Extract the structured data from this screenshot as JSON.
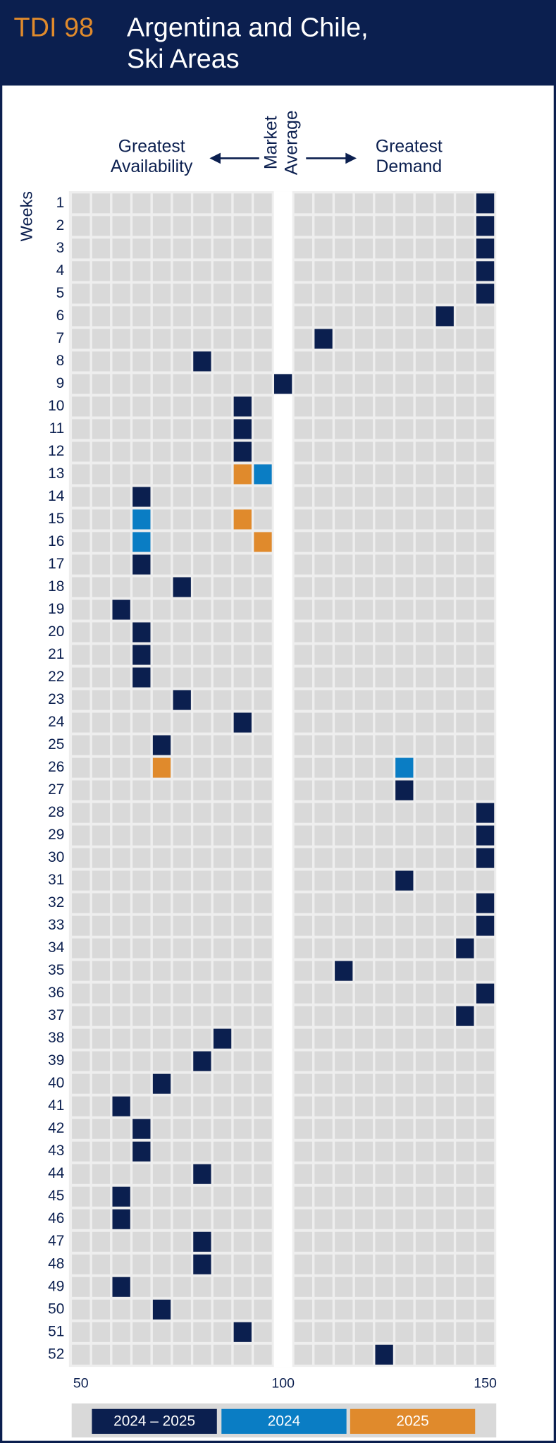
{
  "chart_data": {
    "type": "grid",
    "label": "TDI 98",
    "title_lines": [
      "Argentina and Chile,",
      "Ski Areas"
    ],
    "left_label": [
      "Greatest",
      "Availability"
    ],
    "center_label": [
      "Market",
      "Average"
    ],
    "right_label": [
      "Greatest",
      "Demand"
    ],
    "ylabel": "Weeks",
    "categories": [
      "1",
      "2",
      "3",
      "4",
      "5",
      "6",
      "7",
      "8",
      "9",
      "10",
      "11",
      "12",
      "13",
      "14",
      "15",
      "16",
      "17",
      "18",
      "19",
      "20",
      "21",
      "22",
      "23",
      "24",
      "25",
      "26",
      "27",
      "28",
      "29",
      "30",
      "31",
      "32",
      "33",
      "34",
      "35",
      "36",
      "37",
      "38",
      "39",
      "40",
      "41",
      "42",
      "43",
      "44",
      "45",
      "46",
      "47",
      "48",
      "49",
      "50",
      "51",
      "52"
    ],
    "xlim": [
      50,
      150
    ],
    "xticks": [
      50,
      100,
      150
    ],
    "series": [
      {
        "name": "2024 – 2025",
        "color": "#0b1f4f",
        "values": [
          150,
          150,
          150,
          150,
          150,
          140,
          110,
          80,
          100,
          90,
          90,
          90,
          null,
          65,
          null,
          null,
          65,
          75,
          60,
          65,
          65,
          65,
          75,
          90,
          70,
          null,
          130,
          150,
          150,
          150,
          130,
          150,
          150,
          145,
          115,
          150,
          145,
          85,
          80,
          70,
          60,
          65,
          65,
          80,
          60,
          60,
          80,
          80,
          60,
          70,
          90,
          125
        ]
      },
      {
        "name": "2024",
        "color": "#0a7dc4",
        "values": [
          null,
          null,
          null,
          null,
          null,
          null,
          null,
          null,
          null,
          null,
          null,
          null,
          95,
          null,
          65,
          65,
          null,
          null,
          null,
          null,
          null,
          null,
          null,
          null,
          null,
          130,
          null,
          null,
          null,
          null,
          null,
          null,
          null,
          null,
          null,
          null,
          null,
          null,
          null,
          null,
          null,
          null,
          null,
          null,
          null,
          null,
          null,
          null,
          null,
          null,
          null,
          null
        ]
      },
      {
        "name": "2025",
        "color": "#e08a2c",
        "values": [
          null,
          null,
          null,
          null,
          null,
          null,
          null,
          null,
          null,
          null,
          null,
          null,
          90,
          null,
          90,
          95,
          null,
          null,
          null,
          null,
          null,
          null,
          null,
          null,
          null,
          70,
          null,
          null,
          null,
          null,
          null,
          null,
          null,
          null,
          null,
          null,
          null,
          null,
          null,
          null,
          null,
          null,
          null,
          null,
          null,
          null,
          null,
          null,
          null,
          null,
          null,
          null
        ]
      }
    ]
  }
}
